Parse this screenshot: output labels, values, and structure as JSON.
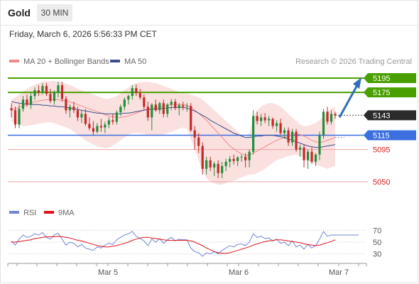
{
  "header": {
    "instrument": "Gold",
    "timeframe": "30 MIN",
    "datetime": "Friday, March 6, 2026 5:56:33 PM CET"
  },
  "legend": {
    "ma20_label": "MA 20 + Bollinger Bands",
    "ma20_color": "#f08a8a",
    "ma50_label": "MA 50",
    "ma50_color": "#3a4f8c",
    "copyright": "Research © 2026 Trading Central"
  },
  "rsi_legend": {
    "rsi_label": "RSI",
    "rsi_color": "#6f86d6",
    "ma_label": "9MA",
    "ma_color": "#e0141e"
  },
  "chart_data": [
    {
      "type": "candlestick",
      "title": "",
      "x_ticks": [
        "Mar 5",
        "Mar 6",
        "Mar 7"
      ],
      "ylim": [
        5040,
        5205
      ],
      "current_price": 5143,
      "levels": [
        {
          "value": 5195,
          "label": "5195",
          "kind": "resistance",
          "color": "#4aa000"
        },
        {
          "value": 5175,
          "label": "5175",
          "kind": "resistance",
          "color": "#4aa000"
        },
        {
          "value": 5115,
          "label": "5115",
          "kind": "pivot",
          "color": "#3b6fe0"
        },
        {
          "value": 5095,
          "label": "5095",
          "kind": "support",
          "color": "#d81b1b"
        },
        {
          "value": 5050,
          "label": "5050",
          "kind": "support",
          "color": "#d81b1b"
        }
      ],
      "candles": [
        [
          5153,
          5160,
          5140,
          5150
        ],
        [
          5150,
          5155,
          5125,
          5130
        ],
        [
          5130,
          5158,
          5125,
          5152
        ],
        [
          5152,
          5170,
          5148,
          5165
        ],
        [
          5165,
          5172,
          5155,
          5158
        ],
        [
          5158,
          5175,
          5152,
          5170
        ],
        [
          5170,
          5182,
          5165,
          5178
        ],
        [
          5178,
          5185,
          5170,
          5175
        ],
        [
          5175,
          5188,
          5172,
          5184
        ],
        [
          5184,
          5188,
          5170,
          5173
        ],
        [
          5173,
          5180,
          5160,
          5163
        ],
        [
          5163,
          5178,
          5158,
          5175
        ],
        [
          5175,
          5190,
          5168,
          5185
        ],
        [
          5185,
          5190,
          5162,
          5166
        ],
        [
          5166,
          5170,
          5145,
          5150
        ],
        [
          5150,
          5158,
          5140,
          5155
        ],
        [
          5155,
          5162,
          5146,
          5150
        ],
        [
          5150,
          5155,
          5135,
          5140
        ],
        [
          5140,
          5150,
          5132,
          5145
        ],
        [
          5145,
          5152,
          5128,
          5131
        ],
        [
          5131,
          5140,
          5122,
          5125
        ],
        [
          5125,
          5135,
          5115,
          5120
        ],
        [
          5120,
          5132,
          5118,
          5128
        ],
        [
          5128,
          5138,
          5120,
          5126
        ],
        [
          5126,
          5134,
          5118,
          5130
        ],
        [
          5130,
          5140,
          5125,
          5136
        ],
        [
          5136,
          5145,
          5130,
          5134
        ],
        [
          5134,
          5150,
          5130,
          5147
        ],
        [
          5147,
          5158,
          5142,
          5155
        ],
        [
          5155,
          5168,
          5150,
          5165
        ],
        [
          5165,
          5172,
          5158,
          5170
        ],
        [
          5170,
          5185,
          5165,
          5181
        ],
        [
          5181,
          5186,
          5170,
          5174
        ],
        [
          5174,
          5180,
          5165,
          5168
        ],
        [
          5168,
          5172,
          5150,
          5155
        ],
        [
          5155,
          5162,
          5135,
          5140
        ],
        [
          5140,
          5160,
          5122,
          5158
        ],
        [
          5158,
          5165,
          5148,
          5150
        ],
        [
          5150,
          5162,
          5145,
          5160
        ],
        [
          5160,
          5165,
          5140,
          5145
        ],
        [
          5145,
          5160,
          5140,
          5158
        ],
        [
          5158,
          5166,
          5150,
          5162
        ],
        [
          5162,
          5166,
          5150,
          5153
        ],
        [
          5153,
          5160,
          5143,
          5157
        ],
        [
          5157,
          5162,
          5150,
          5155
        ],
        [
          5155,
          5160,
          5148,
          5156
        ],
        [
          5156,
          5160,
          5120,
          5122
        ],
        [
          5122,
          5128,
          5095,
          5112
        ],
        [
          5112,
          5118,
          5090,
          5100
        ],
        [
          5100,
          5105,
          5060,
          5068
        ],
        [
          5068,
          5085,
          5060,
          5080
        ],
        [
          5080,
          5085,
          5065,
          5070
        ],
        [
          5070,
          5078,
          5058,
          5075
        ],
        [
          5075,
          5080,
          5055,
          5062
        ],
        [
          5062,
          5078,
          5055,
          5072
        ],
        [
          5072,
          5082,
          5065,
          5078
        ],
        [
          5078,
          5086,
          5070,
          5082
        ],
        [
          5082,
          5088,
          5074,
          5079
        ],
        [
          5079,
          5086,
          5072,
          5084
        ],
        [
          5084,
          5088,
          5078,
          5085
        ],
        [
          5085,
          5090,
          5070,
          5080
        ],
        [
          5080,
          5095,
          5070,
          5092
        ],
        [
          5092,
          5150,
          5088,
          5142
        ],
        [
          5142,
          5148,
          5130,
          5135
        ],
        [
          5135,
          5145,
          5128,
          5140
        ],
        [
          5140,
          5146,
          5132,
          5136
        ],
        [
          5136,
          5142,
          5128,
          5138
        ],
        [
          5138,
          5140,
          5124,
          5128
        ],
        [
          5128,
          5136,
          5120,
          5132
        ],
        [
          5132,
          5138,
          5115,
          5118
        ],
        [
          5118,
          5126,
          5110,
          5122
        ],
        [
          5122,
          5126,
          5100,
          5105
        ],
        [
          5105,
          5124,
          5100,
          5120
        ],
        [
          5120,
          5124,
          5092,
          5095
        ],
        [
          5095,
          5102,
          5085,
          5098
        ],
        [
          5098,
          5102,
          5070,
          5080
        ],
        [
          5080,
          5095,
          5068,
          5092
        ],
        [
          5092,
          5098,
          5075,
          5078
        ],
        [
          5078,
          5090,
          5072,
          5088
        ],
        [
          5088,
          5120,
          5080,
          5115
        ],
        [
          5115,
          5152,
          5110,
          5148
        ],
        [
          5148,
          5155,
          5130,
          5134
        ],
        [
          5134,
          5150,
          5130,
          5145
        ],
        [
          5145,
          5148,
          5138,
          5143
        ]
      ],
      "ma20": [
        5150,
        5152,
        5154,
        5156,
        5158,
        5160,
        5162,
        5163,
        5164,
        5165,
        5165,
        5165,
        5165,
        5164,
        5163,
        5162,
        5160,
        5158,
        5156,
        5154,
        5152,
        5150,
        5148,
        5146,
        5144,
        5142,
        5141,
        5140,
        5140,
        5141,
        5142,
        5144,
        5146,
        5148,
        5150,
        5152,
        5153,
        5154,
        5155,
        5156,
        5157,
        5158,
        5158,
        5158,
        5158,
        5157,
        5154,
        5150,
        5146,
        5141,
        5136,
        5130,
        5124,
        5118,
        5112,
        5106,
        5100,
        5096,
        5092,
        5089,
        5087,
        5087,
        5090,
        5093,
        5096,
        5099,
        5102,
        5105,
        5108,
        5110,
        5112,
        5114,
        5116,
        5117,
        5116,
        5114,
        5111,
        5108,
        5106,
        5105,
        5106,
        5108,
        5110,
        5112
      ],
      "bb_upper": [
        5165,
        5168,
        5172,
        5176,
        5180,
        5183,
        5186,
        5188,
        5190,
        5191,
        5191,
        5191,
        5190,
        5189,
        5187,
        5185,
        5183,
        5180,
        5178,
        5176,
        5174,
        5172,
        5170,
        5168,
        5166,
        5166,
        5168,
        5170,
        5174,
        5178,
        5182,
        5186,
        5188,
        5189,
        5190,
        5190,
        5189,
        5188,
        5186,
        5184,
        5182,
        5180,
        5178,
        5176,
        5175,
        5174,
        5172,
        5170,
        5168,
        5165,
        5160,
        5155,
        5150,
        5145,
        5140,
        5135,
        5130,
        5125,
        5120,
        5115,
        5112,
        5118,
        5140,
        5150,
        5155,
        5158,
        5160,
        5160,
        5158,
        5155,
        5150,
        5145,
        5140,
        5135,
        5130,
        5128,
        5128,
        5130,
        5132,
        5136,
        5142,
        5148,
        5152,
        5155
      ],
      "bb_lower": [
        5135,
        5132,
        5130,
        5128,
        5128,
        5129,
        5130,
        5131,
        5132,
        5133,
        5133,
        5132,
        5130,
        5128,
        5126,
        5124,
        5120,
        5116,
        5112,
        5108,
        5105,
        5102,
        5100,
        5098,
        5097,
        5098,
        5100,
        5104,
        5108,
        5112,
        5116,
        5118,
        5118,
        5118,
        5117,
        5115,
        5114,
        5114,
        5115,
        5116,
        5118,
        5120,
        5122,
        5124,
        5126,
        5124,
        5110,
        5095,
        5080,
        5065,
        5055,
        5050,
        5048,
        5046,
        5046,
        5048,
        5050,
        5052,
        5054,
        5056,
        5058,
        5060,
        5060,
        5062,
        5065,
        5068,
        5072,
        5076,
        5080,
        5082,
        5084,
        5086,
        5087,
        5088,
        5086,
        5084,
        5080,
        5076,
        5074,
        5072,
        5070,
        5068,
        5070,
        5072
      ],
      "ma50": [
        5162,
        5161,
        5160,
        5159,
        5159,
        5158,
        5158,
        5158,
        5157,
        5157,
        5156,
        5156,
        5155,
        5155,
        5154,
        5153,
        5152,
        5151,
        5150,
        5149,
        5148,
        5147,
        5146,
        5146,
        5145,
        5145,
        5145,
        5145,
        5145,
        5146,
        5146,
        5147,
        5148,
        5149,
        5150,
        5151,
        5151,
        5152,
        5152,
        5153,
        5153,
        5154,
        5154,
        5154,
        5154,
        5153,
        5151,
        5149,
        5146,
        5143,
        5140,
        5136,
        5133,
        5130,
        5127,
        5124,
        5121,
        5118,
        5116,
        5114,
        5112,
        5112,
        5113,
        5114,
        5114,
        5115,
        5115,
        5115,
        5114,
        5113,
        5112,
        5110,
        5108,
        5106,
        5104,
        5102,
        5100,
        5099,
        5098,
        5098,
        5099,
        5100,
        5101,
        5102
      ]
    },
    {
      "type": "line",
      "title": "",
      "ylim": [
        20,
        80
      ],
      "y_ticks": [
        70,
        50,
        30
      ],
      "series": [
        {
          "name": "RSI",
          "values": [
            52,
            45,
            55,
            62,
            58,
            60,
            64,
            62,
            66,
            58,
            55,
            62,
            65,
            55,
            45,
            50,
            48,
            42,
            46,
            40,
            38,
            36,
            42,
            40,
            45,
            48,
            46,
            54,
            58,
            62,
            64,
            68,
            60,
            56,
            52,
            44,
            55,
            50,
            56,
            48,
            54,
            58,
            52,
            55,
            54,
            54,
            40,
            34,
            32,
            26,
            32,
            30,
            34,
            30,
            36,
            40,
            44,
            42,
            46,
            47,
            44,
            50,
            64,
            58,
            60,
            56,
            57,
            52,
            55,
            48,
            50,
            44,
            52,
            42,
            45,
            38,
            46,
            40,
            44,
            55,
            68,
            60,
            62,
            62
          ]
        },
        {
          "name": "9MA",
          "values": [
            50,
            50,
            51,
            52,
            53,
            54,
            56,
            57,
            58,
            59,
            59,
            59,
            60,
            59,
            58,
            57,
            55,
            53,
            52,
            50,
            48,
            46,
            44,
            43,
            42,
            42,
            43,
            44,
            46,
            48,
            50,
            53,
            55,
            57,
            58,
            58,
            57,
            56,
            55,
            54,
            53,
            53,
            53,
            53,
            53,
            53,
            52,
            50,
            47,
            44,
            40,
            37,
            34,
            32,
            31,
            31,
            32,
            34,
            36,
            38,
            40,
            42,
            45,
            47,
            49,
            51,
            52,
            53,
            54,
            54,
            53,
            52,
            51,
            50,
            49,
            47,
            46,
            45,
            44,
            45,
            47,
            49,
            51,
            54
          ]
        }
      ]
    }
  ]
}
